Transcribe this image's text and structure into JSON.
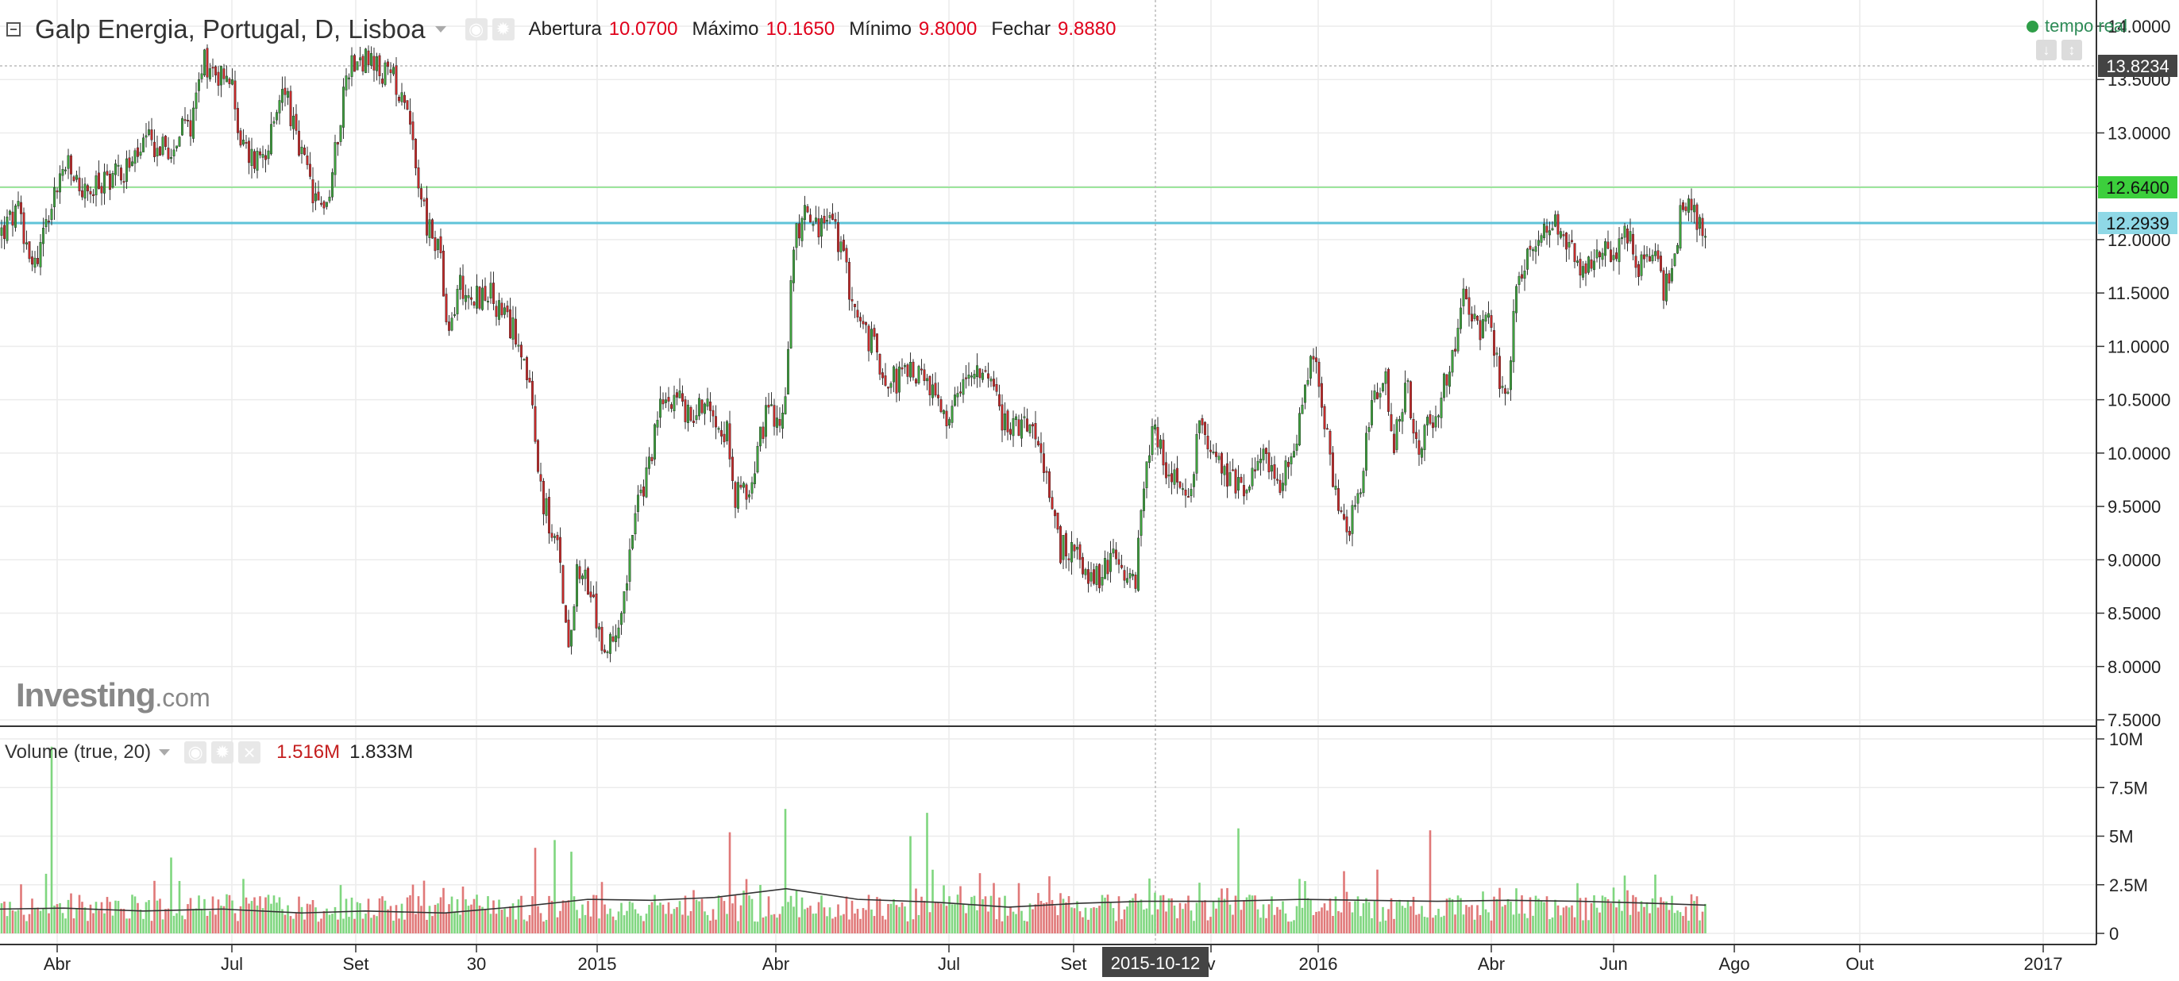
{
  "header": {
    "symbol": "Galp Energia, Portugal, D, Lisboa",
    "ohlc": [
      {
        "label": "Abertura",
        "value": "10.0700"
      },
      {
        "label": "Máximo",
        "value": "10.1650"
      },
      {
        "label": "Mínimo",
        "value": "9.8000"
      },
      {
        "label": "Fechar",
        "value": "9.8880"
      }
    ],
    "realtime_label": "tempo real",
    "realtime_color": "#2e9e48"
  },
  "watermark": {
    "brand": "Investing",
    "suffix": ".com"
  },
  "volume_legend": {
    "label": "Volume (true, 20)",
    "value1": "1.516M",
    "value2": "1.833M"
  },
  "icons": {
    "collapse": "collapse-square-icon",
    "eye": "eye-icon",
    "gear": "gear-icon",
    "close": "close-icon",
    "dropdown": "chevron-down-icon"
  },
  "chart_data": {
    "type": "candlestick",
    "price_axis": {
      "ticks": [
        "14.0000",
        "13.5000",
        "13.0000",
        "12.5000",
        "12.0000",
        "11.5000",
        "11.0000",
        "10.5000",
        "10.0000",
        "9.5000",
        "9.0000",
        "8.5000",
        "8.0000",
        "7.5000"
      ],
      "range": [
        7.5,
        14.0
      ]
    },
    "volume_axis": {
      "ticks": [
        "10M",
        "7.5M",
        "5M",
        "2.5M",
        "0"
      ],
      "range": [
        0,
        10000000
      ]
    },
    "time_axis": {
      "labels": [
        "Abr",
        "Jul",
        "Set",
        "30",
        "2015",
        "Abr",
        "Jul",
        "Set",
        "v",
        "2016",
        "Abr",
        "Jun",
        "Ago",
        "Out",
        "2017"
      ],
      "crosshair_label": "2015-10-12"
    },
    "price_labels": [
      {
        "value": "13.8234",
        "bg": "#444444",
        "line_color": "#bbbbbb"
      },
      {
        "value": "12.6400",
        "bg": "#3ccf3c",
        "line_color": "#7fe07f"
      },
      {
        "value": "12.2939",
        "bg": "#8fd8e6",
        "line_color": "#5fc3d8"
      }
    ],
    "colors": {
      "up": "#3ea03e",
      "down": "#c42a2a",
      "vol_up": "#7fd67f",
      "vol_down": "#e07878",
      "ma": "#333333",
      "grid": "#ececec"
    },
    "price_path": [
      [
        0,
        12.05
      ],
      [
        22,
        12.25
      ],
      [
        45,
        11.75
      ],
      [
        62,
        12.3
      ],
      [
        82,
        12.7
      ],
      [
        110,
        12.4
      ],
      [
        138,
        12.6
      ],
      [
        165,
        12.7
      ],
      [
        185,
        12.9
      ],
      [
        210,
        12.85
      ],
      [
        240,
        13.1
      ],
      [
        255,
        13.7
      ],
      [
        270,
        13.6
      ],
      [
        290,
        13.5
      ],
      [
        305,
        12.85
      ],
      [
        322,
        12.75
      ],
      [
        345,
        13.0
      ],
      [
        358,
        13.5
      ],
      [
        373,
        12.9
      ],
      [
        388,
        12.6
      ],
      [
        398,
        12.3
      ],
      [
        415,
        12.4
      ],
      [
        428,
        13.15
      ],
      [
        438,
        13.6
      ],
      [
        450,
        13.75
      ],
      [
        470,
        13.6
      ],
      [
        495,
        13.5
      ],
      [
        512,
        13.35
      ],
      [
        522,
        12.8
      ],
      [
        538,
        12.1
      ],
      [
        555,
        11.9
      ],
      [
        563,
        11.0
      ],
      [
        578,
        11.6
      ],
      [
        595,
        11.45
      ],
      [
        615,
        11.5
      ],
      [
        638,
        11.2
      ],
      [
        655,
        11.1
      ],
      [
        668,
        10.5
      ],
      [
        678,
        9.8
      ],
      [
        692,
        9.3
      ],
      [
        705,
        9.0
      ],
      [
        715,
        8.2
      ],
      [
        728,
        9.0
      ],
      [
        742,
        8.7
      ],
      [
        755,
        8.3
      ],
      [
        766,
        8.1
      ],
      [
        783,
        8.6
      ],
      [
        800,
        9.4
      ],
      [
        815,
        9.8
      ],
      [
        830,
        10.4
      ],
      [
        850,
        10.6
      ],
      [
        868,
        10.3
      ],
      [
        885,
        10.5
      ],
      [
        900,
        10.4
      ],
      [
        915,
        10.2
      ],
      [
        925,
        9.6
      ],
      [
        938,
        9.6
      ],
      [
        950,
        9.9
      ],
      [
        965,
        10.4
      ],
      [
        982,
        10.2
      ],
      [
        990,
        10.7
      ],
      [
        998,
        11.9
      ],
      [
        1012,
        12.3
      ],
      [
        1030,
        12.1
      ],
      [
        1048,
        12.2
      ],
      [
        1062,
        11.8
      ],
      [
        1082,
        11.2
      ],
      [
        1100,
        11.0
      ],
      [
        1118,
        10.7
      ],
      [
        1135,
        10.7
      ],
      [
        1150,
        10.8
      ],
      [
        1168,
        10.6
      ],
      [
        1190,
        10.3
      ],
      [
        1210,
        10.5
      ],
      [
        1228,
        10.9
      ],
      [
        1245,
        10.6
      ],
      [
        1265,
        10.3
      ],
      [
        1285,
        10.2
      ],
      [
        1300,
        10.4
      ],
      [
        1318,
        9.7
      ],
      [
        1335,
        9.1
      ],
      [
        1350,
        9.1
      ],
      [
        1368,
        8.9
      ],
      [
        1385,
        8.8
      ],
      [
        1400,
        9.0
      ],
      [
        1418,
        8.7
      ],
      [
        1430,
        8.8
      ],
      [
        1440,
        9.6
      ],
      [
        1452,
        10.2
      ],
      [
        1468,
        9.9
      ],
      [
        1482,
        9.8
      ],
      [
        1498,
        9.6
      ],
      [
        1512,
        10.3
      ],
      [
        1525,
        10.1
      ],
      [
        1545,
        9.8
      ],
      [
        1560,
        9.7
      ],
      [
        1580,
        9.8
      ],
      [
        1595,
        10.0
      ],
      [
        1612,
        9.6
      ],
      [
        1630,
        10.1
      ],
      [
        1642,
        10.6
      ],
      [
        1652,
        10.9
      ],
      [
        1665,
        10.5
      ],
      [
        1680,
        9.7
      ],
      [
        1698,
        9.2
      ],
      [
        1712,
        9.7
      ],
      [
        1728,
        10.4
      ],
      [
        1742,
        10.8
      ],
      [
        1756,
        10.1
      ],
      [
        1772,
        10.7
      ],
      [
        1786,
        9.9
      ],
      [
        1800,
        10.3
      ],
      [
        1815,
        10.5
      ],
      [
        1830,
        11.0
      ],
      [
        1845,
        11.5
      ],
      [
        1860,
        11.1
      ],
      [
        1875,
        11.2
      ],
      [
        1890,
        10.6
      ],
      [
        1900,
        10.7
      ],
      [
        1912,
        11.7
      ],
      [
        1925,
        11.9
      ],
      [
        1940,
        12.0
      ],
      [
        1958,
        12.1
      ],
      [
        1975,
        11.9
      ],
      [
        1992,
        11.7
      ],
      [
        2010,
        11.9
      ],
      [
        2030,
        11.85
      ],
      [
        2048,
        12.1
      ],
      [
        2062,
        11.7
      ],
      [
        2080,
        11.9
      ],
      [
        2096,
        11.5
      ],
      [
        2110,
        12.0
      ],
      [
        2122,
        12.4
      ],
      [
        2135,
        12.2
      ],
      [
        2148,
        12.1
      ]
    ],
    "ma_path": [
      [
        0,
        1.25
      ],
      [
        80,
        1.3
      ],
      [
        180,
        1.15
      ],
      [
        280,
        1.25
      ],
      [
        380,
        1.05
      ],
      [
        460,
        1.15
      ],
      [
        560,
        1.05
      ],
      [
        660,
        1.4
      ],
      [
        740,
        1.75
      ],
      [
        820,
        1.7
      ],
      [
        900,
        1.85
      ],
      [
        990,
        2.3
      ],
      [
        1080,
        1.75
      ],
      [
        1180,
        1.6
      ],
      [
        1270,
        1.35
      ],
      [
        1360,
        1.55
      ],
      [
        1440,
        1.65
      ],
      [
        1540,
        1.65
      ],
      [
        1640,
        1.75
      ],
      [
        1720,
        1.7
      ],
      [
        1810,
        1.65
      ],
      [
        1900,
        1.7
      ],
      [
        1990,
        1.65
      ],
      [
        2080,
        1.55
      ],
      [
        2148,
        1.45
      ]
    ],
    "volume_spikes": [
      [
        65,
        9.6,
        1
      ],
      [
        215,
        3.9,
        1
      ],
      [
        675,
        4.4,
        0
      ],
      [
        700,
        4.8,
        1
      ],
      [
        720,
        4.2,
        1
      ],
      [
        920,
        5.2,
        0
      ],
      [
        988,
        6.4,
        0
      ],
      [
        1148,
        5.0,
        1
      ],
      [
        1168,
        6.2,
        1
      ],
      [
        1558,
        5.4,
        0
      ],
      [
        1800,
        5.3,
        0
      ],
      [
        1692,
        3.2,
        0
      ]
    ]
  }
}
